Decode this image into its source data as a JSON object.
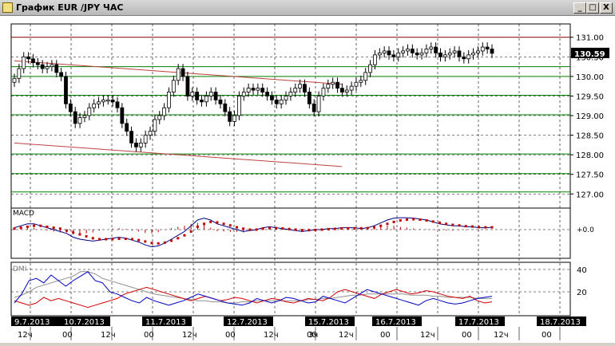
{
  "window": {
    "title": "График EUR /JPY ЧАС",
    "btn_min": "_",
    "btn_max": "□",
    "btn_close": "X"
  },
  "chart_data": {
    "type": "candlestick",
    "title": "График EUR /JPY ЧАС",
    "price": {
      "ylim": [
        126.7,
        131.3
      ],
      "ticks": [
        "131.00",
        "130.50",
        "130.00",
        "129.50",
        "129.00",
        "128.50",
        "128.00",
        "127.50",
        "127.00"
      ],
      "tick_values": [
        131.0,
        130.5,
        130.0,
        129.5,
        129.0,
        128.5,
        128.0,
        127.5,
        127.0
      ],
      "current_label": "130.59",
      "current_value": 130.59,
      "green_levels": [
        130.25,
        130.0,
        129.52,
        129.02,
        128.02,
        127.52,
        127.05
      ],
      "red_levels": [
        131.0
      ],
      "trendlines": [
        {
          "from": [
            0,
            130.4
          ],
          "to": [
            70,
            129.8
          ]
        },
        {
          "from": [
            0,
            128.3
          ],
          "to": [
            70,
            127.7
          ]
        }
      ],
      "closes": [
        129.95,
        130.2,
        130.5,
        130.45,
        130.35,
        130.3,
        130.2,
        130.25,
        130.3,
        130.1,
        130.0,
        129.3,
        129.1,
        128.8,
        128.95,
        129.0,
        129.2,
        129.3,
        129.35,
        129.4,
        129.4,
        129.35,
        129.2,
        128.8,
        128.6,
        128.3,
        128.2,
        128.3,
        128.5,
        128.6,
        128.9,
        129.0,
        129.2,
        129.6,
        129.9,
        130.2,
        130.0,
        129.5,
        129.6,
        129.4,
        129.35,
        129.5,
        129.6,
        129.4,
        129.3,
        129.1,
        128.85,
        129.0,
        129.5,
        129.6,
        129.7,
        129.65,
        129.7,
        129.6,
        129.5,
        129.4,
        129.3,
        129.4,
        129.5,
        129.6,
        129.7,
        129.8,
        129.6,
        129.3,
        129.1,
        129.5,
        129.7,
        129.8,
        129.85,
        129.7,
        129.6,
        129.65,
        129.75,
        129.85,
        129.9,
        130.1,
        130.3,
        130.55,
        130.6,
        130.65,
        130.55,
        130.5,
        130.6,
        130.65,
        130.7,
        130.6,
        130.55,
        130.6,
        130.7,
        130.75,
        130.6,
        130.5,
        130.55,
        130.6,
        130.65,
        130.5,
        130.45,
        130.55,
        130.6,
        130.65,
        130.75,
        130.7,
        130.59
      ]
    },
    "macd": {
      "label": "MACD",
      "tick": "+0.0",
      "ylim": [
        -1,
        1
      ],
      "line": [
        0.1,
        0.2,
        0.3,
        0.3,
        0.2,
        0.1,
        0.0,
        -0.1,
        -0.2,
        -0.4,
        -0.5,
        -0.55,
        -0.6,
        -0.55,
        -0.5,
        -0.45,
        -0.4,
        -0.45,
        -0.55,
        -0.65,
        -0.8,
        -0.9,
        -0.85,
        -0.7,
        -0.5,
        -0.3,
        -0.1,
        0.2,
        0.5,
        0.6,
        0.5,
        0.3,
        0.2,
        0.1,
        0.0,
        -0.1,
        -0.05,
        0.0,
        0.1,
        0.15,
        0.1,
        0.05,
        0.0,
        -0.05,
        -0.1,
        -0.05,
        0.0,
        0.0,
        0.05,
        0.05,
        0.1,
        0.1,
        0.1,
        0.05,
        0.1,
        0.2,
        0.35,
        0.5,
        0.6,
        0.62,
        0.62,
        0.6,
        0.55,
        0.5,
        0.4,
        0.3,
        0.25,
        0.2,
        0.2,
        0.15,
        0.15,
        0.1,
        0.1,
        0.12
      ],
      "signal": [
        0.05,
        0.1,
        0.15,
        0.2,
        0.2,
        0.15,
        0.1,
        0.05,
        -0.05,
        -0.15,
        -0.25,
        -0.35,
        -0.45,
        -0.5,
        -0.5,
        -0.5,
        -0.48,
        -0.48,
        -0.5,
        -0.55,
        -0.62,
        -0.7,
        -0.72,
        -0.68,
        -0.58,
        -0.45,
        -0.3,
        -0.1,
        0.15,
        0.3,
        0.4,
        0.38,
        0.3,
        0.22,
        0.12,
        0.05,
        0.0,
        0.0,
        0.05,
        0.08,
        0.08,
        0.06,
        0.03,
        0.0,
        -0.03,
        -0.03,
        -0.02,
        0.0,
        0.02,
        0.04,
        0.06,
        0.07,
        0.07,
        0.07,
        0.08,
        0.12,
        0.2,
        0.3,
        0.4,
        0.48,
        0.52,
        0.54,
        0.52,
        0.48,
        0.42,
        0.36,
        0.3,
        0.25,
        0.22,
        0.18,
        0.16,
        0.13,
        0.12,
        0.12
      ]
    },
    "dmi": {
      "label": "DMI",
      "ticks": [
        "40",
        "20"
      ],
      "tick_values": [
        40,
        20
      ],
      "ylim": [
        0,
        45
      ],
      "plus_di": [
        10,
        18,
        30,
        32,
        28,
        35,
        30,
        25,
        30,
        34,
        38,
        30,
        28,
        20,
        18,
        15,
        12,
        10,
        15,
        12,
        10,
        8,
        10,
        12,
        15,
        18,
        16,
        14,
        12,
        10,
        9,
        8,
        10,
        14,
        12,
        10,
        12,
        15,
        14,
        12,
        10,
        11,
        16,
        14,
        12,
        10,
        14,
        18,
        22,
        20,
        18,
        16,
        14,
        12,
        10,
        8,
        12,
        14,
        12,
        10,
        9,
        10,
        12,
        14,
        15,
        16
      ],
      "minus_di": [
        12,
        10,
        8,
        10,
        15,
        12,
        14,
        12,
        10,
        8,
        6,
        8,
        10,
        12,
        14,
        18,
        20,
        22,
        24,
        22,
        20,
        18,
        16,
        14,
        12,
        14,
        16,
        14,
        12,
        13,
        15,
        14,
        12,
        10,
        12,
        14,
        13,
        11,
        10,
        12,
        14,
        13,
        12,
        15,
        20,
        22,
        20,
        18,
        16,
        14,
        18,
        20,
        22,
        20,
        18,
        19,
        21,
        20,
        18,
        16,
        15,
        14,
        16,
        12,
        10,
        11
      ],
      "adx": [
        15,
        17,
        20,
        24,
        26,
        28,
        30,
        32,
        34,
        38,
        38,
        36,
        32,
        30,
        28,
        26,
        24,
        22,
        20,
        18,
        17,
        16,
        15,
        14,
        13,
        12,
        12,
        11,
        11,
        10,
        10,
        11,
        11,
        12,
        12,
        12,
        12,
        12,
        12,
        12,
        13,
        13,
        14,
        14,
        15,
        16,
        17,
        17,
        18,
        18,
        18,
        18,
        18,
        18,
        17,
        17,
        17,
        16,
        16,
        15,
        15,
        15,
        15,
        14,
        14,
        14
      ]
    },
    "time_axis": {
      "dates": [
        "9.7.2013",
        "10.7.2013",
        "11.7.2013",
        "12.7.2013",
        "15.7.2013",
        "16.7.2013",
        "17.7.2013",
        "18.7.2013"
      ],
      "hours": [
        "12ч",
        "00",
        "12ч",
        "00",
        "12ч",
        "00",
        "12ч",
        "00",
        "3ч",
        "12ч",
        "00",
        "12ч",
        "00",
        "12ч",
        "00"
      ]
    }
  }
}
